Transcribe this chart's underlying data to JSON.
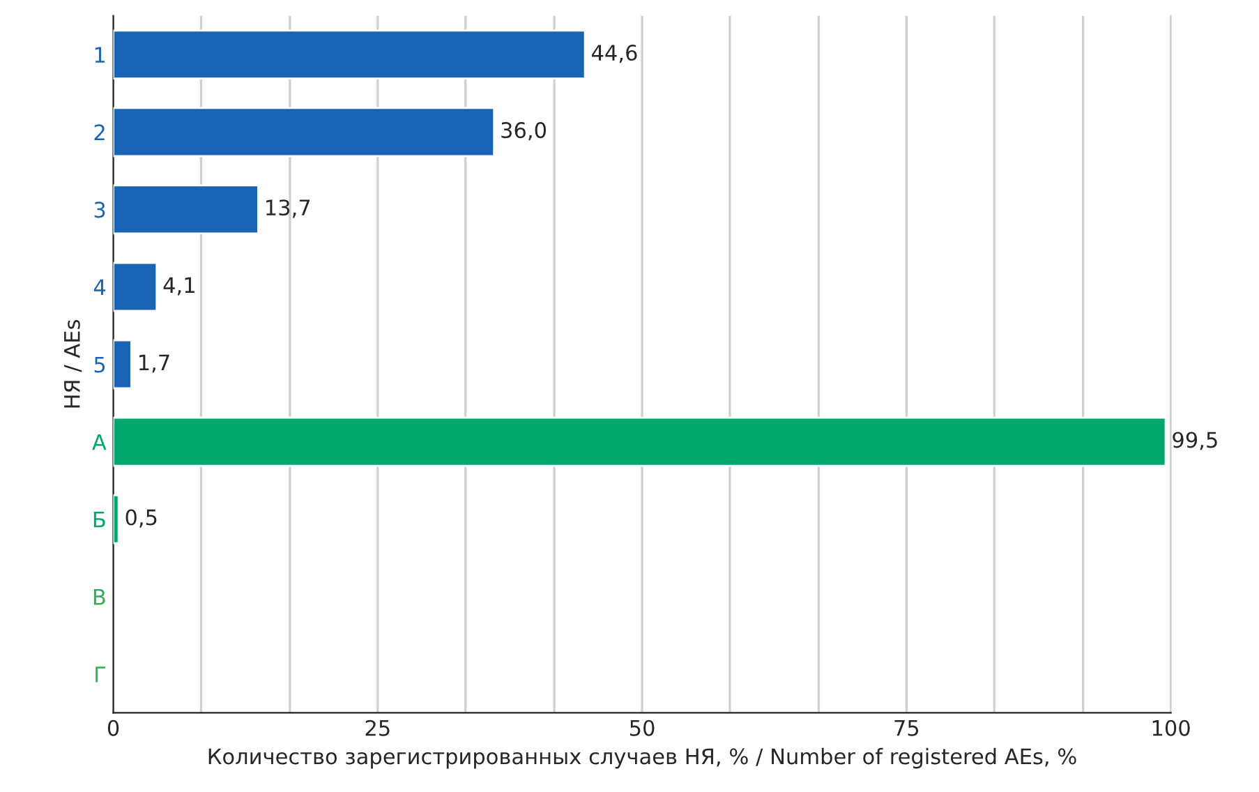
{
  "chart_data": {
    "type": "bar",
    "orientation": "horizontal",
    "xlabel": "Количество зарегистрированных случаев НЯ, % / Number of registered AEs, %",
    "ylabel": "НЯ / AEs",
    "categories": [
      "1",
      "2",
      "3",
      "4",
      "5",
      "А",
      "Б",
      "В",
      "Г"
    ],
    "values": [
      44.6,
      36.0,
      13.7,
      4.1,
      1.7,
      99.5,
      0.5,
      null,
      null
    ],
    "value_labels": [
      "44,6",
      "36,0",
      "13,7",
      "4,1",
      "1,7",
      "99,5",
      "0,5",
      null,
      null
    ],
    "colors": [
      "#1a62b4",
      "#1a62b4",
      "#1a62b4",
      "#1a62b4",
      "#1a62b4",
      "#00a86b",
      "#00a86b",
      "#3aaa5a",
      "#3aaa5a"
    ],
    "xlim": [
      0,
      100
    ],
    "xticks": [
      0,
      {
        "value": 8.3,
        "label": null
      },
      {
        "value": 16.7,
        "label": null
      },
      25,
      {
        "value": 33.3,
        "label": null
      },
      {
        "value": 41.7,
        "label": null
      },
      50,
      {
        "value": 58.3,
        "label": null
      },
      {
        "value": 66.7,
        "label": null
      },
      75,
      {
        "value": 83.3,
        "label": null
      },
      {
        "value": 91.7,
        "label": null
      },
      100
    ],
    "grid": "x",
    "legend": false
  }
}
